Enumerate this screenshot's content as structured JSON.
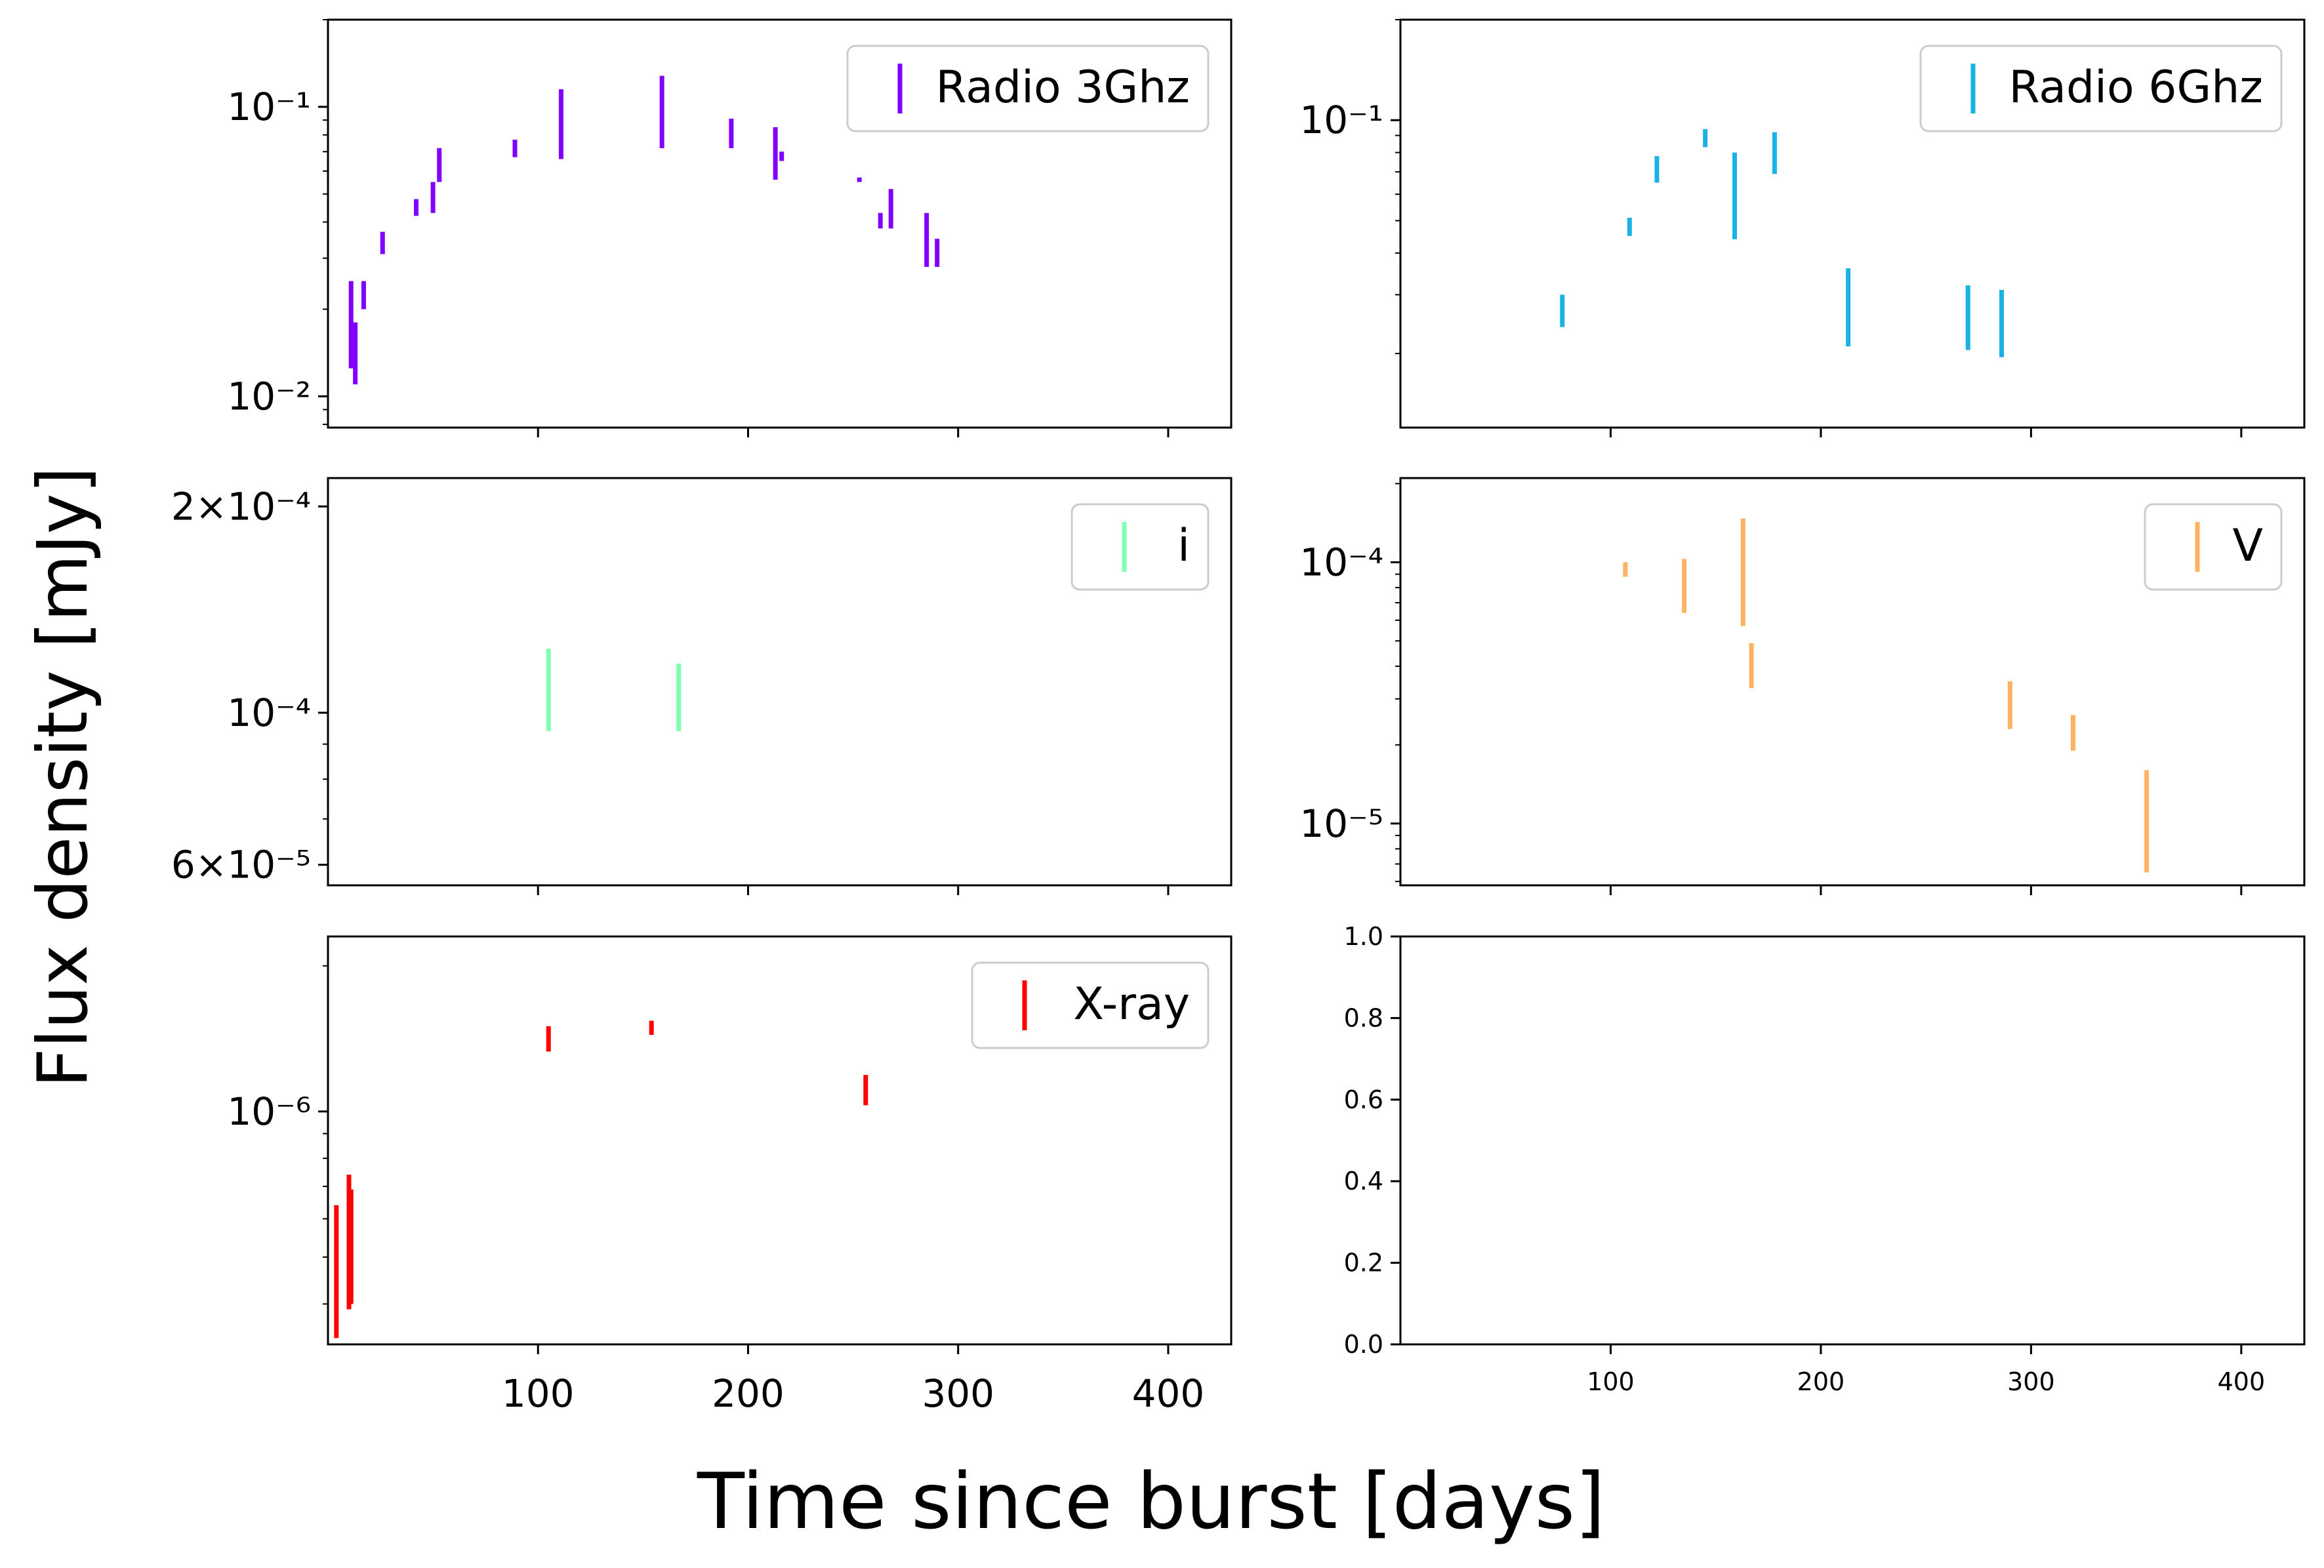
{
  "figure": {
    "ylabel": "Flux density [mJy]",
    "xlabel": "Time since burst [days]"
  },
  "chart_data": [
    {
      "panel": "top-left",
      "type": "errorbar",
      "scale_y": "log",
      "xlim": [
        0,
        430
      ],
      "ylim": [
        0.0078,
        0.2
      ],
      "x_ticks": [
        100,
        200,
        300,
        400
      ],
      "x_tick_labels_visible": false,
      "y_ticks": [
        {
          "value": 0.01,
          "label": "10^-2"
        },
        {
          "value": 0.1,
          "label": "10^-1"
        }
      ],
      "legend": {
        "label": "Radio 3Ghz",
        "position": "upper-right"
      },
      "color": "#8000ff",
      "points": [
        {
          "x": 11,
          "y_low": 0.0125,
          "y_high": 0.025
        },
        {
          "x": 13,
          "y_low": 0.011,
          "y_high": 0.018
        },
        {
          "x": 17,
          "y_low": 0.02,
          "y_high": 0.025
        },
        {
          "x": 26,
          "y_low": 0.031,
          "y_high": 0.037
        },
        {
          "x": 42,
          "y_low": 0.042,
          "y_high": 0.048
        },
        {
          "x": 50,
          "y_low": 0.043,
          "y_high": 0.055
        },
        {
          "x": 53,
          "y_low": 0.055,
          "y_high": 0.072
        },
        {
          "x": 89,
          "y_low": 0.067,
          "y_high": 0.077
        },
        {
          "x": 111,
          "y_low": 0.066,
          "y_high": 0.115
        },
        {
          "x": 159,
          "y_low": 0.072,
          "y_high": 0.128
        },
        {
          "x": 192,
          "y_low": 0.072,
          "y_high": 0.091
        },
        {
          "x": 213,
          "y_low": 0.056,
          "y_high": 0.085
        },
        {
          "x": 216,
          "y_low": 0.065,
          "y_high": 0.07
        },
        {
          "x": 253,
          "y_low": 0.055,
          "y_high": 0.057
        },
        {
          "x": 263,
          "y_low": 0.038,
          "y_high": 0.043
        },
        {
          "x": 268,
          "y_low": 0.038,
          "y_high": 0.052
        },
        {
          "x": 285,
          "y_low": 0.028,
          "y_high": 0.043
        },
        {
          "x": 290,
          "y_low": 0.028,
          "y_high": 0.035
        }
      ]
    },
    {
      "panel": "top-right",
      "type": "errorbar",
      "scale_y": "log",
      "xlim": [
        0,
        430
      ],
      "ylim": [
        0.012,
        0.2
      ],
      "x_ticks": [
        100,
        200,
        300,
        400
      ],
      "x_tick_labels_visible": false,
      "y_ticks": [
        {
          "value": 0.1,
          "label": "10^-1"
        }
      ],
      "legend": {
        "label": "Radio 6Ghz",
        "position": "upper-right"
      },
      "color": "#1ab2e6",
      "points": [
        {
          "x": 77,
          "y_low": 0.024,
          "y_high": 0.03
        },
        {
          "x": 109,
          "y_low": 0.045,
          "y_high": 0.051
        },
        {
          "x": 122,
          "y_low": 0.065,
          "y_high": 0.078
        },
        {
          "x": 145,
          "y_low": 0.083,
          "y_high": 0.094
        },
        {
          "x": 159,
          "y_low": 0.044,
          "y_high": 0.08
        },
        {
          "x": 178,
          "y_low": 0.069,
          "y_high": 0.092
        },
        {
          "x": 213,
          "y_low": 0.021,
          "y_high": 0.036
        },
        {
          "x": 270,
          "y_low": 0.0205,
          "y_high": 0.032
        },
        {
          "x": 286,
          "y_low": 0.0195,
          "y_high": 0.031
        }
      ]
    },
    {
      "panel": "middle-left",
      "type": "errorbar",
      "scale_y": "log",
      "xlim": [
        0,
        430
      ],
      "ylim": [
        5.6e-05,
        0.00022
      ],
      "x_ticks": [
        100,
        200,
        300,
        400
      ],
      "x_tick_labels_visible": false,
      "y_ticks": [
        {
          "value": 6e-05,
          "label": "6×10^-5"
        },
        {
          "value": 0.0001,
          "label": "10^-4"
        },
        {
          "value": 0.0002,
          "label": "2×10^-4"
        }
      ],
      "legend": {
        "label": "i",
        "position": "upper-right"
      },
      "color": "#80ffb4",
      "points": [
        {
          "x": 105,
          "y_low": 9.4e-05,
          "y_high": 0.000124
        },
        {
          "x": 167,
          "y_low": 9.4e-05,
          "y_high": 0.000118
        }
      ]
    },
    {
      "panel": "middle-right",
      "type": "errorbar",
      "scale_y": "log",
      "xlim": [
        0,
        430
      ],
      "ylim": [
        5.8e-06,
        0.00021
      ],
      "x_ticks": [
        100,
        200,
        300,
        400
      ],
      "x_tick_labels_visible": false,
      "y_ticks": [
        {
          "value": 1e-05,
          "label": "10^-5"
        },
        {
          "value": 0.0001,
          "label": "10^-4"
        }
      ],
      "legend": {
        "label": "V",
        "position": "upper-right"
      },
      "color": "#ffb360",
      "points": [
        {
          "x": 107,
          "y_low": 8.8e-05,
          "y_high": 0.0001
        },
        {
          "x": 135,
          "y_low": 6.4e-05,
          "y_high": 0.000103
        },
        {
          "x": 163,
          "y_low": 5.7e-05,
          "y_high": 0.000147
        },
        {
          "x": 167,
          "y_low": 3.3e-05,
          "y_high": 4.9e-05
        },
        {
          "x": 290,
          "y_low": 2.3e-05,
          "y_high": 3.5e-05
        },
        {
          "x": 320,
          "y_low": 1.9e-05,
          "y_high": 2.6e-05
        },
        {
          "x": 355,
          "y_low": 6.5e-06,
          "y_high": 1.6e-05
        }
      ]
    },
    {
      "panel": "bottom-left",
      "type": "errorbar",
      "scale_y": "log",
      "xlim": [
        0,
        430
      ],
      "ylim": [
        3.3e-07,
        2.3e-06
      ],
      "x_ticks": [
        100,
        200,
        300,
        400
      ],
      "x_tick_labels_visible": true,
      "x_tick_labels": [
        "100",
        "200",
        "300",
        "400"
      ],
      "y_ticks": [
        {
          "value": 1e-06,
          "label": "10^-6"
        }
      ],
      "legend": {
        "label": "X-ray",
        "position": "upper-right"
      },
      "color": "#ff0000",
      "points": [
        {
          "x": 4,
          "y_low": 3.4e-07,
          "y_high": 6.4e-07
        },
        {
          "x": 10,
          "y_low": 3.9e-07,
          "y_high": 7.4e-07
        },
        {
          "x": 11,
          "y_low": 4e-07,
          "y_high": 6.9e-07
        },
        {
          "x": 105,
          "y_low": 1.33e-06,
          "y_high": 1.5e-06
        },
        {
          "x": 154,
          "y_low": 1.44e-06,
          "y_high": 1.54e-06
        },
        {
          "x": 256,
          "y_low": 1.03e-06,
          "y_high": 1.19e-06
        }
      ]
    },
    {
      "panel": "bottom-right",
      "type": "empty",
      "xlim": [
        0,
        430
      ],
      "ylim": [
        0,
        1
      ],
      "x_ticks": [
        100,
        200,
        300,
        400
      ],
      "x_tick_labels_visible": true,
      "x_tick_labels": [
        "100",
        "200",
        "300",
        "400"
      ],
      "y_ticks": [
        {
          "value": 0.0,
          "label": "0.0"
        },
        {
          "value": 0.2,
          "label": "0.2"
        },
        {
          "value": 0.4,
          "label": "0.4"
        },
        {
          "value": 0.6,
          "label": "0.6"
        },
        {
          "value": 0.8,
          "label": "0.8"
        },
        {
          "value": 1.0,
          "label": "1.0"
        }
      ]
    }
  ]
}
